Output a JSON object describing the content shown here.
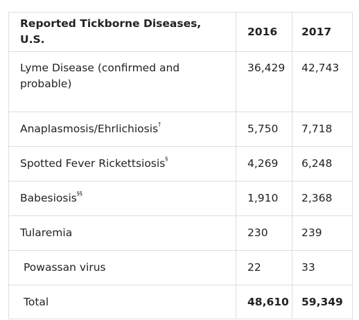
{
  "table": {
    "headers": [
      "Reported Tickborne Diseases, U.S.",
      "2016",
      "2017"
    ],
    "rows": [
      {
        "disease": "Lyme Disease (confirmed and probable)",
        "mark": "",
        "y2016": "36,429",
        "y2017": "42,743"
      },
      {
        "disease": "Anaplasmosis/Ehrlichiosis",
        "mark": "†",
        "y2016": "5,750",
        "y2017": "7,718"
      },
      {
        "disease": "Spotted Fever Rickettsiosis",
        "mark": "§",
        "y2016": "4,269",
        "y2017": "6,248"
      },
      {
        "disease": "Babesiosis",
        "mark": "§§",
        "y2016": "1,910",
        "y2017": "2,368"
      },
      {
        "disease": "Tularemia",
        "mark": "",
        "y2016": "230",
        "y2017": "239"
      },
      {
        "disease": "Powassan virus",
        "mark": "",
        "y2016": "22",
        "y2017": "33"
      }
    ],
    "total": {
      "label": "Total",
      "y2016": "48,610",
      "y2017": "59,349"
    }
  }
}
